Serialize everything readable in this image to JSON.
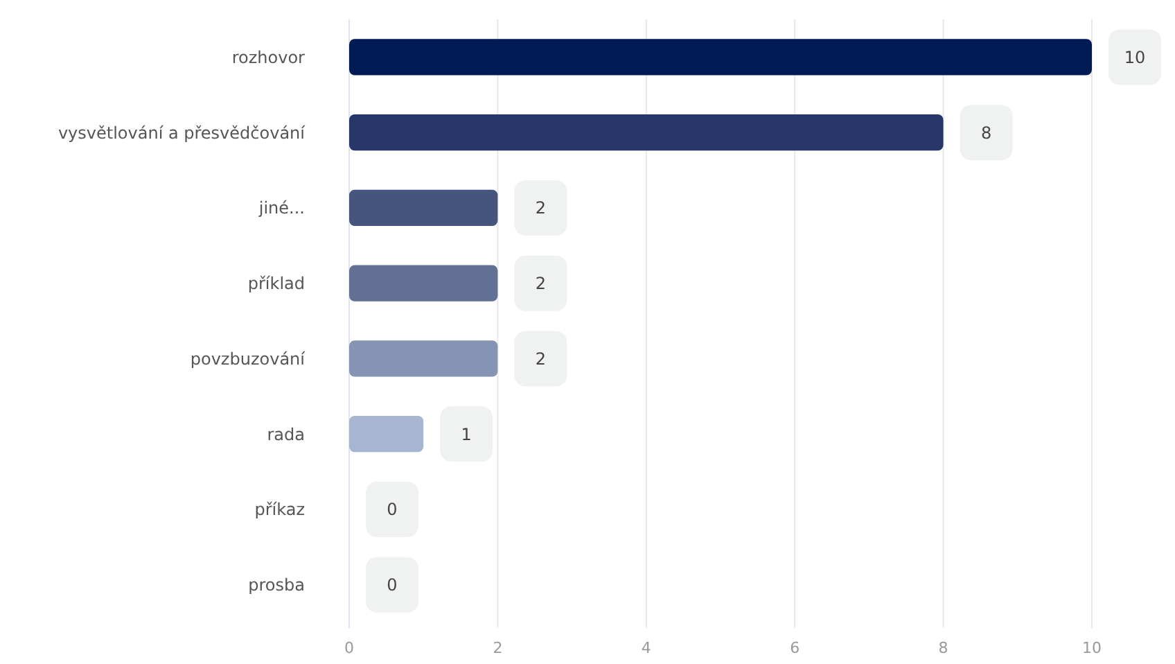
{
  "chart_data": {
    "type": "bar",
    "orientation": "horizontal",
    "categories": [
      "rozhovor",
      "vysvětlování a přesvědčování",
      "jiné...",
      "příklad",
      "povzbuzování",
      "rada",
      "příkaz",
      "prosba"
    ],
    "values": [
      10,
      8,
      2,
      2,
      2,
      1,
      0,
      0
    ],
    "colors": [
      "#001b54",
      "#27376a",
      "#45557d",
      "#627093",
      "#8494b2",
      "#a6b6d0",
      null,
      null
    ],
    "xlim": [
      0,
      10
    ],
    "xticks": [
      0,
      2,
      4,
      6,
      8,
      10
    ],
    "grid": "x",
    "data_labels": true
  }
}
